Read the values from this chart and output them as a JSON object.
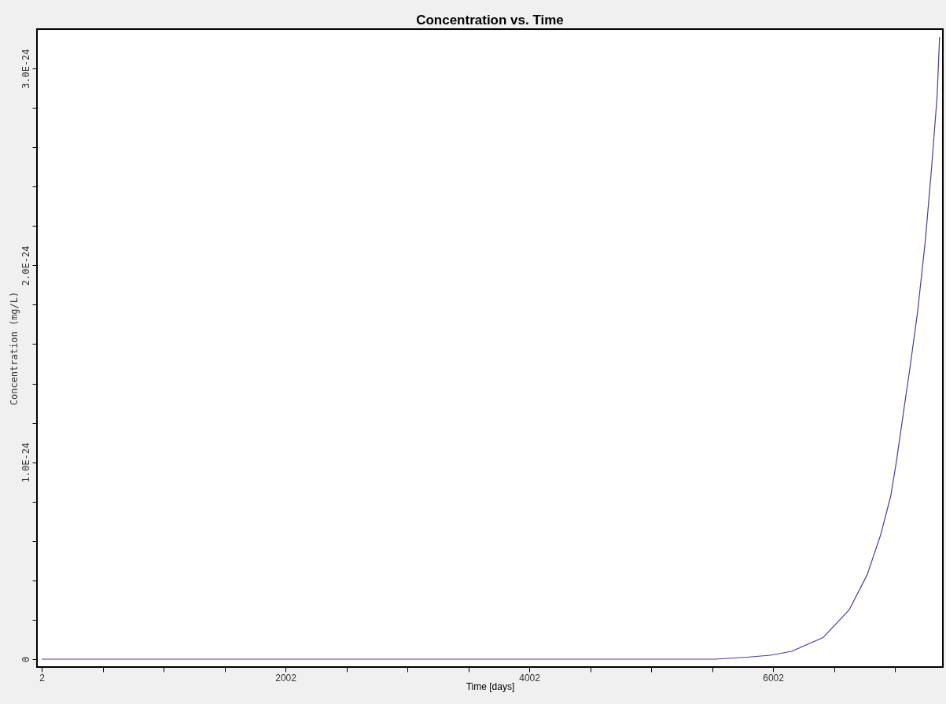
{
  "chart_data": {
    "type": "line",
    "title": "Concentration vs. Time",
    "xlabel": "Time [days]",
    "ylabel": "Concentration (mg/L)",
    "x": [
      2,
      1002,
      2002,
      3002,
      4002,
      5002,
      5527,
      5788,
      5981,
      6155,
      6413,
      6626,
      6775,
      6884,
      6968,
      7013,
      7078,
      7123,
      7187,
      7252,
      7303,
      7348,
      7368
    ],
    "series": [
      {
        "color": "#4040a0",
        "values": [
          0,
          0,
          0,
          0,
          0,
          0,
          0,
          1e-26,
          2e-26,
          4e-26,
          1.1e-25,
          2.5e-25,
          4.3e-25,
          6.3e-25,
          8.3e-25,
          1e-24,
          1.28e-24,
          1.47e-24,
          1.76e-24,
          2.13e-24,
          2.5e-24,
          2.86e-24,
          3.16e-24
        ]
      }
    ],
    "xlim": [
      -37,
      7395
    ],
    "ylim": [
      -4e-26,
      3.2e-24
    ],
    "xticks": [
      2,
      {
        "value": 502,
        "label": null
      },
      {
        "value": 1002,
        "label": null
      },
      {
        "value": 1502,
        "label": null
      },
      2002,
      {
        "value": 2502,
        "label": null
      },
      {
        "value": 3002,
        "label": null
      },
      {
        "value": 3502,
        "label": null
      },
      4002,
      {
        "value": 4502,
        "label": null
      },
      {
        "value": 5002,
        "label": null
      },
      {
        "value": 5502,
        "label": null
      },
      6002,
      {
        "value": 6502,
        "label": null
      },
      {
        "value": 7002,
        "label": null
      }
    ],
    "yticks": [
      0,
      {
        "value": 2e-25,
        "label": null
      },
      {
        "value": 4e-25,
        "label": null
      },
      {
        "value": 6e-25,
        "label": null
      },
      {
        "value": 8e-25,
        "label": null
      },
      {
        "value": 1e-24,
        "label": "1.0E-24"
      },
      {
        "value": 1.2e-24,
        "label": null
      },
      {
        "value": 1.4e-24,
        "label": null
      },
      {
        "value": 1.6e-24,
        "label": null
      },
      {
        "value": 1.8e-24,
        "label": null
      },
      {
        "value": 2e-24,
        "label": "2.0E-24"
      },
      {
        "value": 2.2e-24,
        "label": null
      },
      {
        "value": 2.4e-24,
        "label": null
      },
      {
        "value": 2.6e-24,
        "label": null
      },
      {
        "value": 2.8e-24,
        "label": null
      },
      {
        "value": 3e-24,
        "label": "3.0E-24"
      }
    ],
    "grid": false,
    "legend": false,
    "marker": "none",
    "line_style": "solid"
  }
}
